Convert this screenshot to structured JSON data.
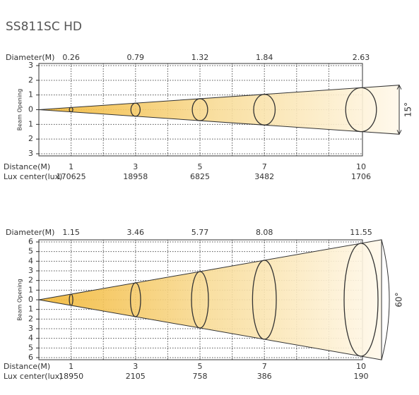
{
  "title": "SS811SC HD",
  "diagrams": [
    {
      "diameter_label": "Diameter(M)",
      "diameters": [
        "0.26",
        "0.79",
        "1.32",
        "1.84",
        "2.63"
      ],
      "y_labels": [
        "3",
        "2",
        "1",
        "0",
        "1",
        "2",
        "3"
      ],
      "axis_title": "Beam Opening",
      "angle": "15°",
      "distance_label": "Distance(M)",
      "distances": [
        "1",
        "3",
        "5",
        "7",
        "10"
      ],
      "lux_label": "Lux center(lux)",
      "lux": [
        "170625",
        "18958",
        "6825",
        "3482",
        "1706"
      ]
    },
    {
      "diameter_label": "Diameter(M)",
      "diameters": [
        "1.15",
        "3.46",
        "5.77",
        "8.08",
        "11.55"
      ],
      "y_labels": [
        "6",
        "5",
        "4",
        "3",
        "2",
        "1",
        "0",
        "1",
        "2",
        "3",
        "4",
        "5",
        "6"
      ],
      "axis_title": "Beam Opening",
      "angle": "60°",
      "distance_label": "Distance(M)",
      "distances": [
        "1",
        "3",
        "5",
        "7",
        "10"
      ],
      "lux_label": "Lux center(lux)",
      "lux": [
        "18950",
        "2105",
        "758",
        "386",
        "190"
      ]
    }
  ]
}
